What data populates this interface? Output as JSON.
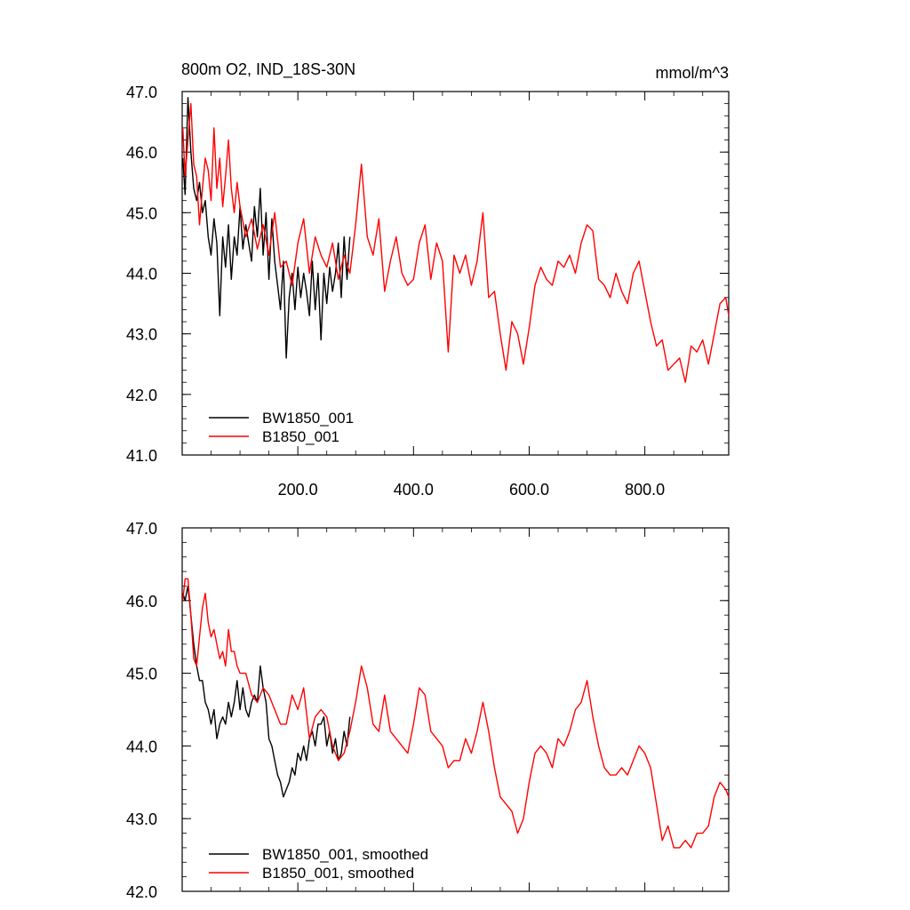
{
  "chart_data": [
    {
      "type": "line",
      "title_left": "800m O2, IND_18S-30N",
      "title_right": "mmol/m^3",
      "xlim": [
        0,
        945
      ],
      "ylim": [
        41.0,
        47.0
      ],
      "x_ticks": [
        200,
        400,
        600,
        800
      ],
      "x_tick_labels": [
        "200.0",
        "400.0",
        "600.0",
        "800.0"
      ],
      "y_ticks": [
        41,
        42,
        43,
        44,
        45,
        46,
        47
      ],
      "y_tick_labels": [
        "41.0",
        "42.0",
        "43.0",
        "44.0",
        "45.0",
        "46.0",
        "47.0"
      ],
      "legend_position": "bottom-left",
      "series": [
        {
          "name": "BW1850_001",
          "color": "#000000",
          "x": [
            1,
            5,
            10,
            15,
            20,
            25,
            30,
            35,
            40,
            45,
            50,
            55,
            60,
            65,
            70,
            75,
            80,
            85,
            90,
            95,
            100,
            105,
            110,
            115,
            120,
            125,
            130,
            135,
            140,
            145,
            150,
            155,
            160,
            165,
            170,
            175,
            180,
            185,
            190,
            195,
            200,
            205,
            210,
            215,
            220,
            225,
            230,
            235,
            240,
            245,
            250,
            255,
            260,
            265,
            270,
            275,
            280,
            285,
            290
          ],
          "values": [
            45.9,
            45.3,
            46.9,
            46.0,
            45.4,
            45.2,
            45.5,
            45.0,
            45.2,
            44.6,
            44.3,
            44.9,
            44.5,
            43.3,
            44.6,
            44.1,
            44.8,
            43.9,
            44.6,
            44.3,
            45.1,
            44.4,
            44.8,
            44.5,
            44.2,
            45.1,
            44.6,
            45.4,
            44.3,
            45.0,
            43.9,
            44.9,
            44.2,
            43.8,
            43.4,
            44.2,
            42.6,
            43.6,
            44.0,
            43.4,
            44.1,
            43.6,
            44.0,
            43.7,
            43.3,
            44.2,
            43.4,
            44.0,
            42.9,
            44.0,
            43.5,
            44.1,
            43.7,
            44.0,
            44.5,
            43.6,
            44.6,
            43.9,
            44.6
          ]
        },
        {
          "name": "B1850_001",
          "color": "#ff0000",
          "x": [
            1,
            5,
            10,
            15,
            20,
            25,
            30,
            35,
            40,
            45,
            50,
            55,
            60,
            65,
            70,
            75,
            80,
            85,
            90,
            95,
            100,
            110,
            120,
            130,
            140,
            150,
            160,
            170,
            180,
            190,
            200,
            210,
            220,
            230,
            240,
            250,
            260,
            270,
            280,
            290,
            300,
            310,
            320,
            330,
            340,
            350,
            360,
            370,
            380,
            390,
            400,
            410,
            420,
            430,
            440,
            450,
            460,
            470,
            480,
            490,
            500,
            510,
            520,
            530,
            540,
            550,
            560,
            570,
            580,
            590,
            600,
            610,
            620,
            630,
            640,
            650,
            660,
            670,
            680,
            690,
            700,
            710,
            720,
            730,
            740,
            750,
            760,
            770,
            780,
            790,
            800,
            810,
            820,
            830,
            840,
            850,
            860,
            870,
            880,
            890,
            900,
            910,
            920,
            930,
            940,
            945
          ],
          "values": [
            46.4,
            45.6,
            46.2,
            46.8,
            45.8,
            45.6,
            44.8,
            45.4,
            45.9,
            45.7,
            45.2,
            46.4,
            45.4,
            45.9,
            45.1,
            45.6,
            46.2,
            45.4,
            45.0,
            45.5,
            45.1,
            44.6,
            44.9,
            44.4,
            44.8,
            44.3,
            45.0,
            44.1,
            44.2,
            43.8,
            44.5,
            44.9,
            44.0,
            44.6,
            44.3,
            44.1,
            44.5,
            43.9,
            44.3,
            44.0,
            44.8,
            45.8,
            44.6,
            44.3,
            44.9,
            43.7,
            44.2,
            44.6,
            44.0,
            43.8,
            43.9,
            44.5,
            44.8,
            43.9,
            44.5,
            44.2,
            42.7,
            44.3,
            44.0,
            44.3,
            43.8,
            44.2,
            45.0,
            43.6,
            43.7,
            43.0,
            42.4,
            43.2,
            43.0,
            42.5,
            43.1,
            43.8,
            44.1,
            43.9,
            43.8,
            44.2,
            44.1,
            44.3,
            44.0,
            44.5,
            44.8,
            44.7,
            43.9,
            43.8,
            43.6,
            44.0,
            43.7,
            43.5,
            44.0,
            44.2,
            43.7,
            43.2,
            42.8,
            42.9,
            42.4,
            42.5,
            42.6,
            42.2,
            42.8,
            42.7,
            42.9,
            42.5,
            43.0,
            43.5,
            43.6,
            43.3
          ]
        }
      ]
    },
    {
      "type": "line",
      "xlim": [
        0,
        945
      ],
      "ylim": [
        42.0,
        47.0
      ],
      "x_ticks": [
        200,
        400,
        600,
        800
      ],
      "y_ticks": [
        42,
        43,
        44,
        45,
        46,
        47
      ],
      "y_tick_labels": [
        "42.0",
        "43.0",
        "44.0",
        "45.0",
        "46.0",
        "47.0"
      ],
      "legend_position": "bottom-left",
      "series": [
        {
          "name": "BW1850_001, smoothed",
          "color": "#000000",
          "x": [
            1,
            5,
            10,
            15,
            20,
            25,
            30,
            35,
            40,
            45,
            50,
            55,
            60,
            65,
            70,
            75,
            80,
            85,
            90,
            95,
            100,
            105,
            110,
            115,
            120,
            125,
            130,
            135,
            140,
            145,
            150,
            155,
            160,
            165,
            170,
            175,
            180,
            185,
            190,
            195,
            200,
            205,
            210,
            215,
            220,
            225,
            230,
            235,
            240,
            245,
            250,
            255,
            260,
            265,
            270,
            275,
            280,
            285,
            290
          ],
          "values": [
            46.1,
            46.0,
            46.2,
            45.8,
            45.4,
            45.1,
            44.9,
            44.9,
            44.6,
            44.5,
            44.3,
            44.5,
            44.1,
            44.3,
            44.4,
            44.3,
            44.6,
            44.4,
            44.6,
            44.9,
            44.5,
            44.8,
            44.5,
            44.4,
            44.6,
            44.7,
            44.6,
            45.1,
            44.8,
            44.6,
            44.1,
            44.0,
            43.8,
            43.6,
            43.5,
            43.3,
            43.4,
            43.5,
            43.7,
            43.6,
            43.9,
            43.8,
            44.0,
            43.8,
            44.1,
            44.2,
            44.0,
            44.3,
            44.3,
            44.4,
            44.0,
            44.2,
            43.9,
            44.1,
            43.8,
            43.9,
            44.2,
            44.0,
            44.4
          ]
        },
        {
          "name": "B1850_001, smoothed",
          "color": "#ff0000",
          "x": [
            1,
            5,
            10,
            15,
            20,
            25,
            30,
            35,
            40,
            45,
            50,
            55,
            60,
            65,
            70,
            75,
            80,
            85,
            90,
            95,
            100,
            110,
            120,
            130,
            140,
            150,
            160,
            170,
            180,
            190,
            200,
            210,
            220,
            230,
            240,
            250,
            260,
            270,
            280,
            290,
            300,
            310,
            320,
            330,
            340,
            350,
            360,
            370,
            380,
            390,
            400,
            410,
            420,
            430,
            440,
            450,
            460,
            470,
            480,
            490,
            500,
            510,
            520,
            530,
            540,
            550,
            560,
            570,
            580,
            590,
            600,
            610,
            620,
            630,
            640,
            650,
            660,
            670,
            680,
            690,
            700,
            710,
            720,
            730,
            740,
            750,
            760,
            770,
            780,
            790,
            800,
            810,
            820,
            830,
            840,
            850,
            860,
            870,
            880,
            890,
            900,
            910,
            920,
            930,
            940,
            945
          ],
          "values": [
            46.0,
            46.3,
            46.3,
            45.8,
            45.2,
            45.1,
            45.5,
            45.9,
            46.1,
            45.7,
            45.5,
            45.6,
            45.4,
            45.2,
            45.3,
            45.1,
            45.6,
            45.3,
            45.3,
            45.1,
            45.0,
            45.0,
            44.7,
            44.6,
            44.8,
            44.7,
            44.5,
            44.3,
            44.3,
            44.7,
            44.5,
            44.8,
            44.1,
            44.4,
            44.5,
            44.4,
            44.0,
            43.8,
            43.9,
            44.2,
            44.6,
            45.1,
            44.8,
            44.3,
            44.2,
            44.7,
            44.2,
            44.1,
            44.0,
            43.9,
            44.3,
            44.8,
            44.7,
            44.2,
            44.1,
            44.0,
            43.7,
            43.8,
            43.8,
            44.1,
            43.9,
            44.2,
            44.6,
            44.2,
            43.7,
            43.3,
            43.2,
            43.1,
            42.8,
            43.0,
            43.5,
            43.9,
            44.0,
            43.9,
            43.7,
            44.1,
            44.0,
            44.2,
            44.5,
            44.6,
            44.9,
            44.4,
            44.0,
            43.7,
            43.6,
            43.6,
            43.7,
            43.6,
            43.8,
            44.0,
            43.9,
            43.7,
            43.2,
            42.7,
            42.9,
            42.6,
            42.6,
            42.7,
            42.6,
            42.8,
            42.8,
            42.9,
            43.3,
            43.5,
            43.4,
            43.3
          ]
        }
      ]
    }
  ]
}
